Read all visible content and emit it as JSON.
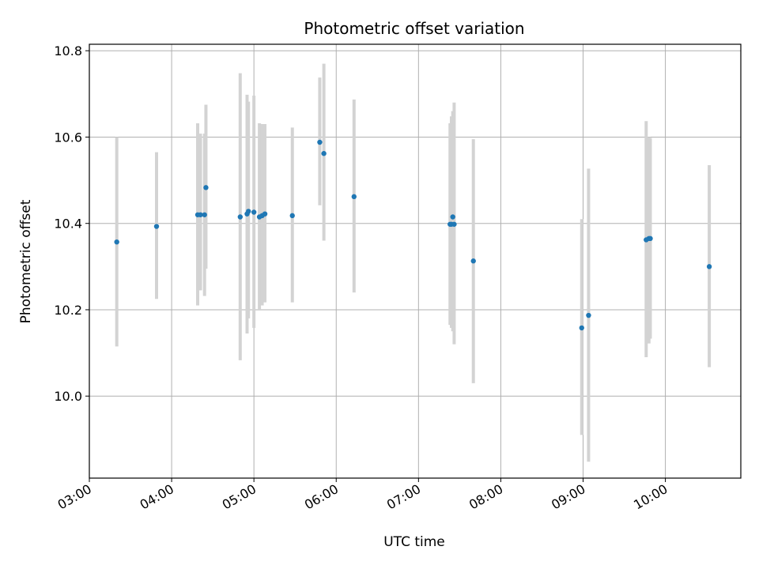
{
  "chart_data": {
    "type": "scatter",
    "title": "Photometric offset variation",
    "xlabel": "UTC time",
    "ylabel": "Photometric offset",
    "x_axis_type": "time",
    "xlim": [
      "03:00",
      "10:55"
    ],
    "ylim": [
      9.81,
      10.815
    ],
    "x_ticks": [
      "03:00",
      "04:00",
      "05:00",
      "06:00",
      "07:00",
      "08:00",
      "09:00",
      "10:00"
    ],
    "y_ticks": [
      10.0,
      10.2,
      10.4,
      10.6,
      10.8
    ],
    "y_tick_labels": [
      "10.0",
      "10.2",
      "10.4",
      "10.6",
      "10.8"
    ],
    "grid": true,
    "point_color": "#1f77b4",
    "errorbar_color": "#d3d3d3",
    "points": [
      {
        "t": "03:20",
        "y": 10.357,
        "low": 10.115,
        "high": 10.6
      },
      {
        "t": "03:49",
        "y": 10.393,
        "low": 10.225,
        "high": 10.565
      },
      {
        "t": "04:19",
        "y": 10.42,
        "low": 10.21,
        "high": 10.632
      },
      {
        "t": "04:21",
        "y": 10.42,
        "low": 10.245,
        "high": 10.608
      },
      {
        "t": "04:24",
        "y": 10.42,
        "low": 10.232,
        "high": 10.608
      },
      {
        "t": "04:25",
        "y": 10.483,
        "low": 10.295,
        "high": 10.675
      },
      {
        "t": "04:50",
        "y": 10.415,
        "low": 10.083,
        "high": 10.748
      },
      {
        "t": "04:55",
        "y": 10.422,
        "low": 10.145,
        "high": 10.698
      },
      {
        "t": "04:56",
        "y": 10.428,
        "low": 10.18,
        "high": 10.682
      },
      {
        "t": "05:00",
        "y": 10.426,
        "low": 10.158,
        "high": 10.696
      },
      {
        "t": "05:04",
        "y": 10.415,
        "low": 10.2,
        "high": 10.632
      },
      {
        "t": "05:06",
        "y": 10.418,
        "low": 10.21,
        "high": 10.63
      },
      {
        "t": "05:08",
        "y": 10.422,
        "low": 10.217,
        "high": 10.63
      },
      {
        "t": "05:28",
        "y": 10.418,
        "low": 10.217,
        "high": 10.622
      },
      {
        "t": "05:48",
        "y": 10.588,
        "low": 10.442,
        "high": 10.738
      },
      {
        "t": "05:51",
        "y": 10.562,
        "low": 10.36,
        "high": 10.77
      },
      {
        "t": "06:13",
        "y": 10.462,
        "low": 10.24,
        "high": 10.687
      },
      {
        "t": "07:23",
        "y": 10.398,
        "low": 10.165,
        "high": 10.632
      },
      {
        "t": "07:24",
        "y": 10.398,
        "low": 10.158,
        "high": 10.648
      },
      {
        "t": "07:25",
        "y": 10.415,
        "low": 10.15,
        "high": 10.66
      },
      {
        "t": "07:26",
        "y": 10.398,
        "low": 10.12,
        "high": 10.68
      },
      {
        "t": "07:40",
        "y": 10.313,
        "low": 10.03,
        "high": 10.595
      },
      {
        "t": "08:59",
        "y": 10.158,
        "low": 9.91,
        "high": 10.41
      },
      {
        "t": "09:04",
        "y": 10.187,
        "low": 9.848,
        "high": 10.527
      },
      {
        "t": "09:46",
        "y": 10.362,
        "low": 10.09,
        "high": 10.637
      },
      {
        "t": "09:48",
        "y": 10.365,
        "low": 10.122,
        "high": 10.6
      },
      {
        "t": "09:49",
        "y": 10.365,
        "low": 10.133,
        "high": 10.598
      },
      {
        "t": "10:32",
        "y": 10.3,
        "low": 10.067,
        "high": 10.535
      }
    ]
  }
}
